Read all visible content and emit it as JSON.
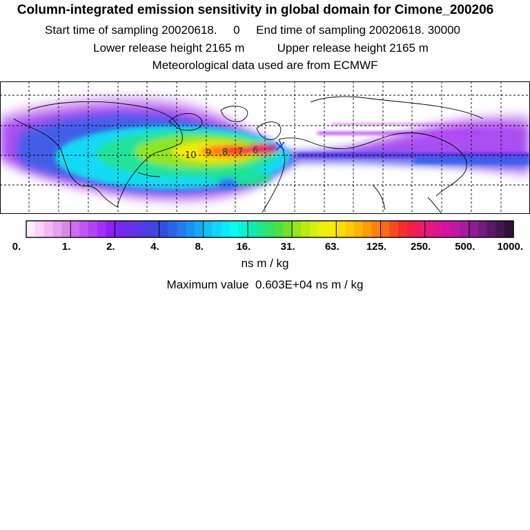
{
  "header": {
    "title": "Column-integrated emission sensitivity in global domain for Cimone_200206",
    "sampling": "Start time of sampling 20020618.     0     End time of sampling 20020618. 30000",
    "release": "Lower release height 2165 m          Upper release height 2165 m",
    "met": "Meteorological data used are from ECMWF"
  },
  "map": {
    "cell_labels": [
      "10",
      "9",
      "8",
      "7",
      "6"
    ]
  },
  "colorbar": {
    "ticks": [
      "0.",
      "1.",
      "2.",
      "4.",
      "8.",
      "16.",
      "31.",
      "63.",
      "125.",
      "250.",
      "500.",
      "1000."
    ],
    "colors": [
      "#fdeafd",
      "#f9d4f9",
      "#f3b9f3",
      "#eaa0ee",
      "#d98ae8",
      "#cf6cf0",
      "#c157f3",
      "#b443f5",
      "#a330f5",
      "#8f1ff3",
      "#7a28ee",
      "#6a30e8",
      "#5b36e4",
      "#4c3de2",
      "#3f45e0",
      "#304ee0",
      "#2b63e8",
      "#2679ef",
      "#1f90f4",
      "#18a8f8",
      "#13c0fb",
      "#0fd6fd",
      "#0de9fe",
      "#0cf7f0",
      "#09f2d2",
      "#10eab2",
      "#22e38f",
      "#33e06a",
      "#4ddf46",
      "#73e02a",
      "#98e41d",
      "#b8ea14",
      "#d4ef10",
      "#e8f00c",
      "#f5ea08",
      "#fbdc05",
      "#fdc903",
      "#ffb502",
      "#fd9d06",
      "#fb830d",
      "#f86816",
      "#f54b20",
      "#f22f2c",
      "#ef1f46",
      "#ec1a63",
      "#e6187f",
      "#db1691",
      "#cf15a0",
      "#be17a6",
      "#a81a9f",
      "#8f1c92",
      "#741b7d",
      "#5a1965",
      "#44164f",
      "#2f1238"
    ],
    "unit": "ns m / kg"
  },
  "summary": {
    "max_value": "Maximum value  0.603E+04 ns m / kg"
  }
}
